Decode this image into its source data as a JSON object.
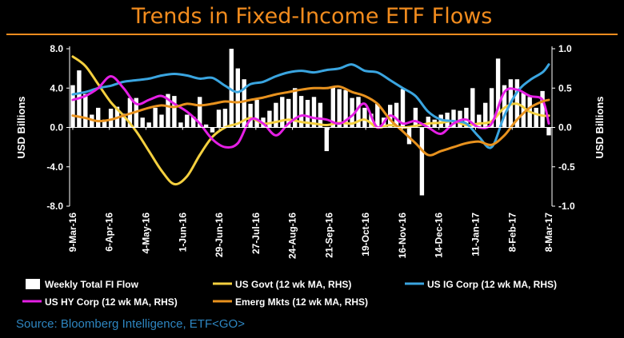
{
  "title": "Trends in Fixed-Income ETF Flows",
  "source": "Source: Bloomberg Intelligence, ETF<GO>",
  "colors": {
    "background": "#000000",
    "title": "#F28C1E",
    "source": "#2E86C1",
    "bars": "#FFFFFF",
    "us_govt": "#F4D03F",
    "us_ig_corp": "#3AA5E0",
    "us_hy_corp": "#E51FE5",
    "emerg_mkts": "#E8921E"
  },
  "chart_data": {
    "type": "bar+line",
    "grid": false,
    "legend_position": "bottom",
    "x_tick_labels": [
      "9-Mar-16",
      "6-Apr-16",
      "4-May-16",
      "1-Jun-16",
      "29-Jun-16",
      "27-Jul-16",
      "24-Aug-16",
      "21-Sep-16",
      "19-Oct-16",
      "16-Nov-16",
      "14-Dec-16",
      "11-Jan-17",
      "8-Feb-17",
      "8-Mar-17"
    ],
    "left_axis": {
      "label": "USD Billions",
      "min": -8.0,
      "max": 8.0,
      "ticks": [
        "-8.0",
        "-4.0",
        "0.0",
        "4.0",
        "8.0"
      ]
    },
    "right_axis": {
      "label": "USD Billions",
      "min": -1.0,
      "max": 1.0,
      "ticks": [
        "-1.0",
        "-0.5",
        "0.0",
        "0.5",
        "1.0"
      ]
    },
    "bars": {
      "name": "Weekly Total FI Flow",
      "axis": "left",
      "values": [
        4.3,
        5.8,
        3.4,
        1.3,
        2.0,
        0.8,
        1.9,
        2.1,
        1.4,
        3.0,
        3.0,
        1.0,
        0.5,
        2.0,
        1.3,
        3.4,
        3.2,
        0.5,
        1.3,
        1.1,
        3.1,
        0.3,
        -0.5,
        1.8,
        1.9,
        8.0,
        6.0,
        4.9,
        2.4,
        2.8,
        1.0,
        1.7,
        2.5,
        3.1,
        2.9,
        4.0,
        3.2,
        2.8,
        3.1,
        2.5,
        -2.4,
        4.1,
        3.9,
        3.8,
        3.0,
        3.1,
        2.0,
        1.4,
        2.4,
        1.0,
        2.3,
        2.5,
        3.9,
        -1.7,
        2.0,
        -6.9,
        1.1,
        0.8,
        1.3,
        1.5,
        1.8,
        1.7,
        2.0,
        4.0,
        1.3,
        2.5,
        4.0,
        7.0,
        4.3,
        4.9,
        4.9,
        3.5,
        3.1,
        2.0,
        3.7,
        -0.8
      ]
    },
    "series": [
      {
        "name": "US Govt (12 wk MA, RHS)",
        "axis": "right",
        "x": [
          0,
          2,
          4,
          6,
          8,
          10,
          12,
          14,
          16,
          18,
          20,
          22,
          24,
          26,
          28,
          30,
          32,
          34,
          36,
          38,
          40,
          42,
          44,
          46,
          48,
          50,
          52,
          54,
          56,
          58,
          60,
          62,
          64,
          66,
          68,
          70,
          72,
          74,
          75
        ],
        "values": [
          0.9,
          0.78,
          0.55,
          0.32,
          0.15,
          -0.05,
          -0.3,
          -0.55,
          -0.72,
          -0.62,
          -0.35,
          -0.12,
          0.0,
          0.05,
          0.12,
          0.05,
          0.07,
          0.1,
          0.07,
          0.05,
          0.03,
          0.06,
          0.05,
          0.1,
          0.0,
          0.03,
          0.0,
          0.02,
          0.05,
          0.06,
          0.08,
          0.03,
          0.05,
          0.08,
          0.25,
          0.3,
          0.2,
          0.15,
          0.15
        ]
      },
      {
        "name": "US IG Corp (12 wk MA, RHS)",
        "axis": "right",
        "x": [
          0,
          2,
          4,
          6,
          8,
          10,
          12,
          14,
          16,
          18,
          20,
          22,
          24,
          26,
          28,
          30,
          32,
          34,
          36,
          38,
          40,
          42,
          44,
          46,
          48,
          50,
          52,
          54,
          56,
          58,
          60,
          62,
          64,
          66,
          68,
          70,
          72,
          74,
          75
        ],
        "values": [
          0.42,
          0.45,
          0.5,
          0.53,
          0.58,
          0.6,
          0.62,
          0.66,
          0.68,
          0.66,
          0.62,
          0.63,
          0.53,
          0.45,
          0.55,
          0.58,
          0.65,
          0.7,
          0.72,
          0.7,
          0.73,
          0.75,
          0.8,
          0.72,
          0.7,
          0.6,
          0.5,
          0.4,
          0.2,
          0.1,
          0.08,
          0.05,
          -0.12,
          -0.25,
          0.15,
          0.45,
          0.6,
          0.7,
          0.8
        ]
      },
      {
        "name": "US HY Corp (12 wk MA, RHS)",
        "axis": "right",
        "x": [
          0,
          2,
          4,
          6,
          8,
          10,
          12,
          14,
          16,
          18,
          20,
          22,
          24,
          26,
          28,
          30,
          32,
          34,
          36,
          38,
          40,
          42,
          44,
          46,
          48,
          50,
          52,
          54,
          56,
          58,
          60,
          62,
          64,
          66,
          68,
          70,
          72,
          74,
          75
        ],
        "values": [
          0.35,
          0.4,
          0.5,
          0.65,
          0.5,
          0.3,
          0.35,
          0.4,
          0.3,
          0.2,
          0.05,
          -0.15,
          -0.25,
          -0.2,
          0.1,
          0.05,
          -0.1,
          0.05,
          0.15,
          0.12,
          0.1,
          0.05,
          0.15,
          0.3,
          0.0,
          0.15,
          0.05,
          0.08,
          0.0,
          -0.08,
          0.05,
          0.1,
          0.0,
          0.05,
          0.45,
          0.48,
          0.4,
          0.35,
          0.05
        ]
      },
      {
        "name": "Emerg Mkts (12 wk MA, RHS)",
        "axis": "right",
        "x": [
          0,
          2,
          4,
          6,
          8,
          10,
          12,
          14,
          16,
          18,
          20,
          22,
          24,
          26,
          28,
          30,
          32,
          34,
          36,
          38,
          40,
          42,
          44,
          46,
          48,
          50,
          52,
          54,
          56,
          58,
          60,
          62,
          64,
          66,
          68,
          70,
          72,
          74,
          75
        ],
        "values": [
          0.15,
          0.12,
          0.08,
          0.1,
          0.15,
          0.2,
          0.25,
          0.28,
          0.26,
          0.3,
          0.28,
          0.3,
          0.33,
          0.32,
          0.35,
          0.38,
          0.42,
          0.45,
          0.48,
          0.5,
          0.5,
          0.52,
          0.45,
          0.4,
          0.3,
          0.1,
          -0.05,
          -0.2,
          -0.35,
          -0.3,
          -0.25,
          -0.2,
          -0.18,
          -0.22,
          -0.1,
          0.1,
          0.25,
          0.33,
          0.35
        ]
      }
    ],
    "legend": [
      {
        "label": "Weekly Total FI Flow",
        "kind": "bar"
      },
      {
        "label": "US Govt (12 wk MA, RHS)",
        "kind": "line"
      },
      {
        "label": "US IG Corp (12 wk MA, RHS)",
        "kind": "line"
      },
      {
        "label": "US HY Corp (12 wk MA, RHS)",
        "kind": "line"
      },
      {
        "label": "Emerg Mkts (12 wk MA, RHS)",
        "kind": "line"
      }
    ]
  }
}
